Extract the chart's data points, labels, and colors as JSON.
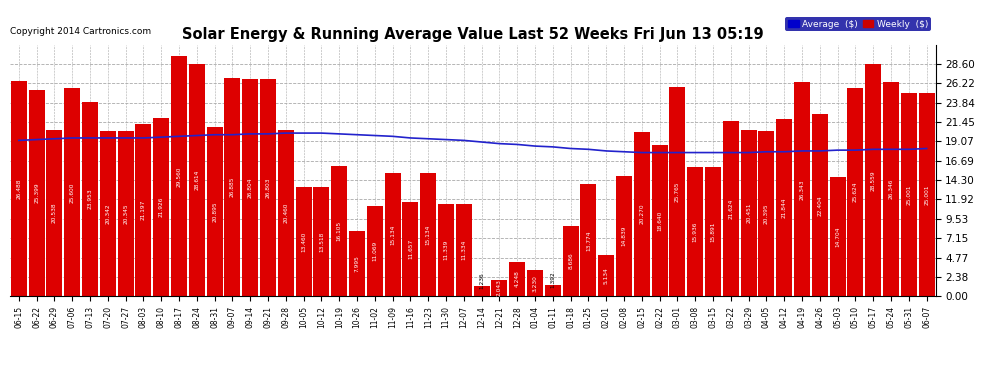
{
  "title": "Solar Energy & Running Average Value Last 52 Weeks Fri Jun 13 05:19",
  "copyright": "Copyright 2014 Cartronics.com",
  "ylabel_right_values": [
    28.6,
    26.22,
    23.84,
    21.45,
    19.07,
    16.69,
    14.3,
    11.92,
    9.53,
    7.15,
    4.77,
    2.38,
    0.0
  ],
  "bar_color": "#dd0000",
  "avg_line_color": "#2222cc",
  "background_color": "#ffffff",
  "plot_bg_color": "#ffffff",
  "grid_color": "#aaaaaa",
  "bar_values": [
    26.488,
    25.399,
    20.538,
    25.6,
    23.953,
    20.342,
    20.345,
    21.197,
    21.926,
    29.56,
    28.614,
    20.895,
    26.885,
    26.804,
    26.803,
    20.46,
    13.46,
    13.518,
    16.105,
    7.995,
    11.069,
    15.134,
    11.657,
    15.134,
    11.339,
    11.334,
    1.236,
    2.043,
    4.248,
    3.23,
    1.392,
    8.686,
    13.774,
    5.134,
    14.839,
    20.27,
    18.64,
    25.765,
    15.936,
    15.891,
    21.624,
    20.451,
    20.395,
    21.844,
    26.343,
    22.404,
    14.704,
    25.624,
    28.559,
    26.346,
    25.001,
    25.001
  ],
  "dates": [
    "06-15",
    "06-22",
    "06-29",
    "07-06",
    "07-13",
    "07-20",
    "07-27",
    "08-03",
    "08-10",
    "08-17",
    "08-24",
    "08-31",
    "09-07",
    "09-14",
    "09-21",
    "09-28",
    "10-05",
    "10-12",
    "10-19",
    "10-26",
    "11-02",
    "11-09",
    "11-16",
    "11-23",
    "11-30",
    "12-07",
    "12-14",
    "12-21",
    "12-28",
    "01-04",
    "01-11",
    "01-18",
    "01-25",
    "02-01",
    "02-08",
    "02-15",
    "02-22",
    "03-01",
    "03-08",
    "03-15",
    "03-22",
    "03-29",
    "04-05",
    "04-12",
    "04-19",
    "04-26",
    "05-03",
    "05-10",
    "05-17",
    "05-24",
    "05-31",
    "06-07"
  ],
  "avg_line_values": [
    19.2,
    19.3,
    19.4,
    19.5,
    19.5,
    19.5,
    19.5,
    19.5,
    19.6,
    19.7,
    19.8,
    19.9,
    19.9,
    20.0,
    20.0,
    20.1,
    20.1,
    20.1,
    20.0,
    19.9,
    19.8,
    19.7,
    19.5,
    19.4,
    19.3,
    19.2,
    19.0,
    18.8,
    18.7,
    18.5,
    18.4,
    18.2,
    18.1,
    17.9,
    17.8,
    17.7,
    17.7,
    17.7,
    17.7,
    17.7,
    17.7,
    17.7,
    17.8,
    17.8,
    17.9,
    17.9,
    18.0,
    18.0,
    18.1,
    18.1,
    18.1,
    18.2
  ],
  "ylim": [
    0,
    30.95
  ],
  "legend_avg_color": "#0000cc",
  "legend_weekly_color": "#cc0000",
  "legend_text_color": "#ffffff",
  "legend_bg_color": "#000099"
}
